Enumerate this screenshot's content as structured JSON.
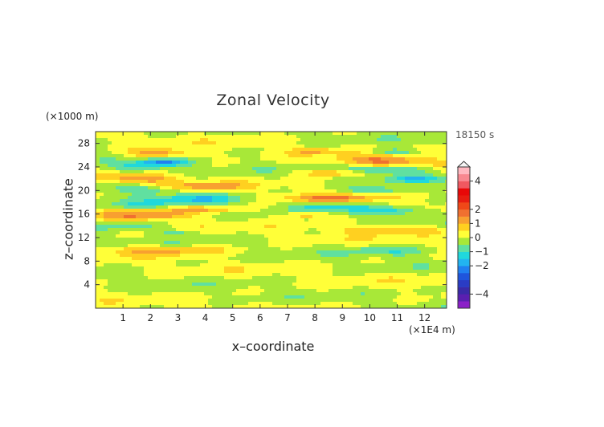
{
  "chart_data": {
    "type": "heatmap",
    "title": "Zonal Velocity",
    "xlabel": "x–coordinate",
    "ylabel": "z–coordinate",
    "x_unit": "(×1E4 m)",
    "y_unit": "(×1000 m)",
    "time_label": "18150 s",
    "xlim": [
      0,
      12.8
    ],
    "ylim": [
      0,
      30
    ],
    "x_ticks": [
      1,
      2,
      3,
      4,
      5,
      6,
      7,
      8,
      9,
      10,
      11,
      12
    ],
    "y_ticks": [
      4,
      8,
      12,
      16,
      20,
      24,
      28
    ],
    "colorbar": {
      "levels": [
        -5,
        -4.5,
        -4,
        -3.5,
        -3,
        -2.5,
        -2,
        -1.5,
        -1,
        -0.5,
        0,
        0.5,
        1,
        1.5,
        2,
        2.5,
        3,
        3.5,
        4,
        4.5,
        5
      ],
      "colors": [
        "#8b1fc7",
        "#5a1fb0",
        "#3a2aa8",
        "#2a3cc4",
        "#1f55dc",
        "#2080f0",
        "#22b4f0",
        "#20d8dc",
        "#60e0a0",
        "#a8e838",
        "#ffff38",
        "#ffd020",
        "#f8a030",
        "#f07030",
        "#f04818",
        "#e81c10",
        "#e80808",
        "#f05860",
        "#f88890",
        "#ffb8c0"
      ],
      "tick_labels": [
        "4",
        "2",
        "1",
        "0",
        "−1",
        "−2",
        "−4"
      ],
      "tick_values": [
        4,
        2,
        1,
        0,
        -1,
        -2,
        -4
      ]
    },
    "features": [
      {
        "xc": 2.3,
        "zc": 26.3,
        "rx": 1.2,
        "rz": 0.8,
        "v": 1.5
      },
      {
        "xc": 1.6,
        "zc": 24.0,
        "rx": 1.1,
        "rz": 0.8,
        "v": -1.2
      },
      {
        "xc": 2.5,
        "zc": 24.8,
        "rx": 0.9,
        "rz": 0.6,
        "v": -1.8
      },
      {
        "xc": 1.6,
        "zc": 22.0,
        "rx": 1.3,
        "rz": 0.7,
        "v": 1.4
      },
      {
        "xc": 1.8,
        "zc": 20.2,
        "rx": 1.2,
        "rz": 0.7,
        "v": -1.1
      },
      {
        "xc": 3.8,
        "zc": 18.5,
        "rx": 1.6,
        "rz": 0.9,
        "v": -1.3
      },
      {
        "xc": 4.0,
        "zc": 20.7,
        "rx": 1.6,
        "rz": 0.6,
        "v": 1.1
      },
      {
        "xc": 1.7,
        "zc": 17.5,
        "rx": 1.2,
        "rz": 0.6,
        "v": -0.9
      },
      {
        "xc": 1.8,
        "zc": 15.8,
        "rx": 1.6,
        "rz": 0.8,
        "v": 1.4
      },
      {
        "xc": 4.0,
        "zc": 16.8,
        "rx": 1.6,
        "rz": 0.6,
        "v": 1.1
      },
      {
        "xc": 1.2,
        "zc": 13.8,
        "rx": 1.1,
        "rz": 0.6,
        "v": -0.9
      },
      {
        "xc": 3.0,
        "zc": 12.8,
        "rx": 0.9,
        "rz": 0.5,
        "v": -0.7
      },
      {
        "xc": 2.6,
        "zc": 9.8,
        "rx": 2.2,
        "rz": 0.8,
        "v": 1.2
      },
      {
        "xc": 10.5,
        "zc": 25.0,
        "rx": 1.6,
        "rz": 0.9,
        "v": 1.6
      },
      {
        "xc": 10.8,
        "zc": 26.6,
        "rx": 0.8,
        "rz": 0.5,
        "v": -1.2
      },
      {
        "xc": 10.6,
        "zc": 23.5,
        "rx": 1.5,
        "rz": 0.7,
        "v": -1.4
      },
      {
        "xc": 8.6,
        "zc": 23.0,
        "rx": 1.1,
        "rz": 0.6,
        "v": 1.2
      },
      {
        "xc": 11.6,
        "zc": 22.0,
        "rx": 1.0,
        "rz": 0.6,
        "v": -1.2
      },
      {
        "xc": 8.6,
        "zc": 18.7,
        "rx": 1.6,
        "rz": 0.7,
        "v": 1.4
      },
      {
        "xc": 8.6,
        "zc": 17.2,
        "rx": 1.2,
        "rz": 0.5,
        "v": -1.2
      },
      {
        "xc": 10.3,
        "zc": 20.0,
        "rx": 1.2,
        "rz": 0.6,
        "v": -1.1
      },
      {
        "xc": 10.6,
        "zc": 16.5,
        "rx": 1.5,
        "rz": 0.7,
        "v": -1.2
      },
      {
        "xc": 7.6,
        "zc": 15.8,
        "rx": 0.9,
        "rz": 0.5,
        "v": 1.1
      },
      {
        "xc": 10.8,
        "zc": 13.3,
        "rx": 1.8,
        "rz": 0.7,
        "v": 1.2
      },
      {
        "xc": 10.8,
        "zc": 9.7,
        "rx": 1.6,
        "rz": 0.8,
        "v": -0.9
      },
      {
        "xc": 7.9,
        "zc": 26.7,
        "rx": 0.7,
        "rz": 0.5,
        "v": 1.1
      }
    ]
  }
}
